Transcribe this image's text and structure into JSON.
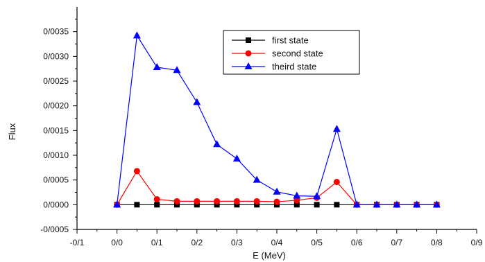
{
  "chart_data": {
    "type": "line",
    "xlabel": "E (MeV)",
    "ylabel": "Flux",
    "xlim": [
      -0.1,
      0.9
    ],
    "ylim": [
      -0.0005,
      0.004
    ],
    "x_ticks": [
      -0.1,
      0.0,
      0.1,
      0.2,
      0.3,
      0.4,
      0.5,
      0.6,
      0.7,
      0.8,
      0.9
    ],
    "x_tick_labels": [
      "-0/1",
      "0/0",
      "0/1",
      "0/2",
      "0/3",
      "0/4",
      "0/5",
      "0/6",
      "0/7",
      "0/8",
      "0/9"
    ],
    "y_ticks": [
      -0.0005,
      0.0,
      0.0005,
      0.001,
      0.0015,
      0.002,
      0.0025,
      0.003,
      0.0035
    ],
    "y_tick_labels": [
      "-0/0005",
      "0/0000",
      "0/0005",
      "0/0010",
      "0/0015",
      "0/0020",
      "0/0025",
      "0/0030",
      "0/0035"
    ],
    "grid": false,
    "legend_position": "top-right",
    "x": [
      0.0,
      0.05,
      0.1,
      0.15,
      0.2,
      0.25,
      0.3,
      0.35,
      0.4,
      0.45,
      0.5,
      0.55,
      0.6,
      0.65,
      0.7,
      0.75,
      0.8
    ],
    "series": [
      {
        "name": "first state",
        "color": "#000000",
        "marker": "square",
        "values": [
          0.0,
          0.0,
          0.0,
          0.0,
          0.0,
          0.0,
          0.0,
          0.0,
          0.0,
          0.0,
          0.0,
          0.0,
          0.0,
          0.0,
          0.0,
          0.0,
          0.0
        ]
      },
      {
        "name": "second state",
        "color": "#ff0000",
        "marker": "circle",
        "values": [
          0.0,
          0.00068,
          0.00011,
          7e-05,
          7e-05,
          7e-05,
          7e-05,
          7e-05,
          6e-05,
          9e-05,
          0.00014,
          0.00046,
          0.0,
          0.0,
          0.0,
          0.0,
          0.0
        ]
      },
      {
        "name": "theird state",
        "color": "#0000ff",
        "marker": "triangle",
        "values": [
          0.0,
          0.00342,
          0.00278,
          0.00272,
          0.00207,
          0.00122,
          0.00093,
          0.0005,
          0.00026,
          0.00018,
          0.00017,
          0.00153,
          0.0,
          0.0,
          0.0,
          0.0,
          0.0
        ]
      }
    ]
  }
}
